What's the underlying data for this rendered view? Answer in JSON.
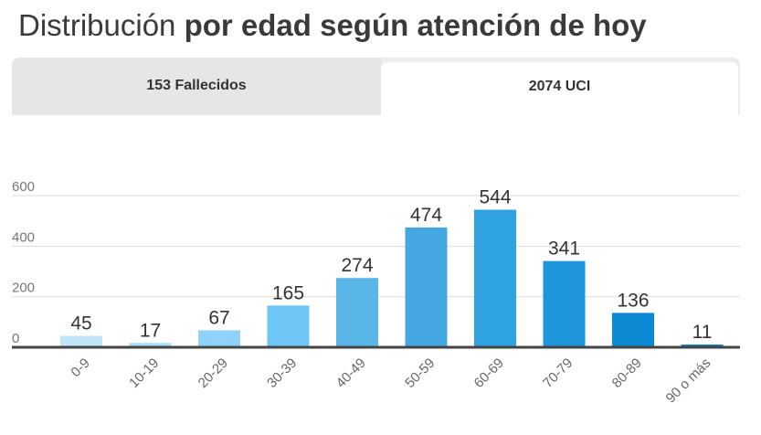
{
  "title": {
    "light": "Distribución",
    "bold": "por edad según atención de hoy"
  },
  "tabs": [
    {
      "label": "153 Fallecidos",
      "active": false
    },
    {
      "label": "2074 UCI",
      "active": true
    }
  ],
  "chart_data": {
    "type": "bar",
    "categories": [
      "0-9",
      "10-19",
      "20-29",
      "30-39",
      "40-49",
      "50-59",
      "60-69",
      "70-79",
      "80-89",
      "90 o más"
    ],
    "values": [
      45,
      17,
      67,
      165,
      274,
      474,
      544,
      341,
      136,
      11
    ],
    "colors": [
      "#bfe3f7",
      "#a9dcf8",
      "#8fd2fb",
      "#6fc6f6",
      "#5ab5e8",
      "#44a7e2",
      "#2fa2e1",
      "#1d96dc",
      "#0d8ad4",
      "#0a84cc"
    ],
    "yticks": [
      0,
      200,
      400,
      600
    ],
    "ylim": [
      0,
      600
    ],
    "grid": true,
    "xlabel": "",
    "ylabel": ""
  }
}
